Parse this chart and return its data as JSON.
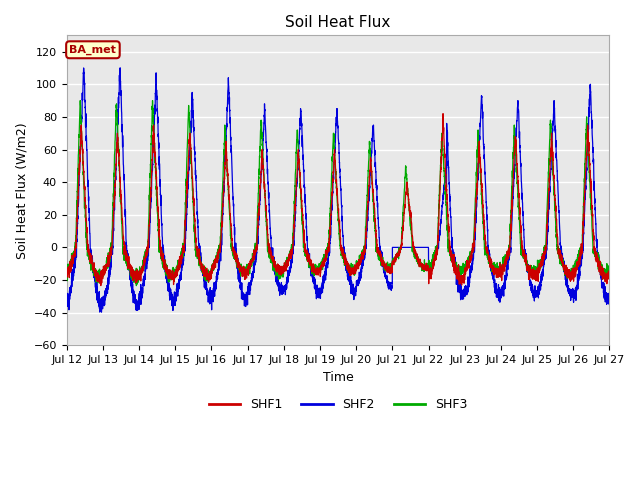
{
  "title": "Soil Heat Flux",
  "xlabel": "Time",
  "ylabel": "Soil Heat Flux (W/m2)",
  "ylim": [
    -60,
    130
  ],
  "yticks": [
    -60,
    -40,
    -20,
    0,
    20,
    40,
    60,
    80,
    100,
    120
  ],
  "colors": {
    "SHF1": "#cc0000",
    "SHF2": "#0000dd",
    "SHF3": "#00aa00"
  },
  "annotation_text": "BA_met",
  "annotation_bg": "#ffffcc",
  "annotation_border": "#aa0000",
  "xtick_labels": [
    "Jul 12",
    "Jul 13",
    "Jul 14",
    "Jul 15",
    "Jul 16",
    "Jul 17",
    "Jul 18",
    "Jul 19",
    "Jul 20",
    "Jul 21",
    "Jul 22",
    "Jul 23",
    "Jul 24",
    "Jul 25",
    "Jul 26",
    "Jul 27"
  ],
  "plot_bg": "#e8e8e8",
  "fig_bg": "#ffffff",
  "grid_color": "#ffffff",
  "title_fontsize": 11,
  "axis_fontsize": 9,
  "tick_fontsize": 8
}
